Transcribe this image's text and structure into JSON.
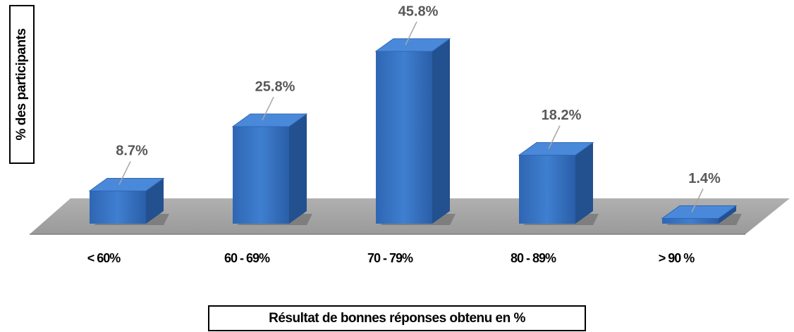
{
  "chart_data": {
    "type": "bar3d",
    "y_axis_label": "% des participants",
    "x_axis_label": "Résultat de bonnes réponses obtenu en %",
    "categories": [
      "< 60%",
      "60 - 69%",
      "70 - 79%",
      "80 - 89%",
      "> 90 %"
    ],
    "values": [
      8.7,
      25.8,
      45.8,
      18.2,
      1.4
    ],
    "value_labels": [
      "8.7%",
      "25.8%",
      "45.8%",
      "18.2%",
      "1.4%"
    ],
    "color": "#3a75c4"
  }
}
